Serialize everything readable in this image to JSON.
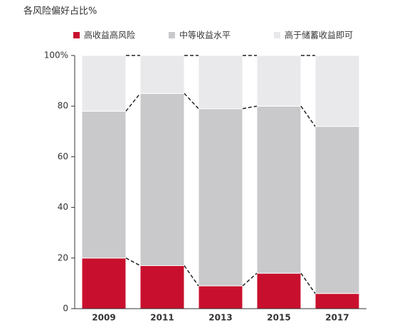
{
  "chart_data": {
    "type": "stacked_bar",
    "title": "各风险偏好占比%",
    "categories": [
      "2009",
      "2011",
      "2013",
      "2015",
      "2017"
    ],
    "series": [
      {
        "name": "高收益高风险",
        "color": "#c8102e",
        "values": [
          20,
          17,
          9,
          14,
          6
        ]
      },
      {
        "name": "中等收益水平",
        "color": "#c9c8cb",
        "values": [
          58,
          68,
          70,
          66,
          66
        ]
      },
      {
        "name": "高于储蓄收益即可",
        "color": "#e9e8eb",
        "values": [
          22,
          15,
          21,
          20,
          28
        ]
      }
    ],
    "ylim": [
      0,
      100
    ],
    "yticks": [
      0,
      20,
      40,
      60,
      80,
      {
        "value": 100,
        "label": "100%"
      }
    ],
    "connectors": true
  }
}
